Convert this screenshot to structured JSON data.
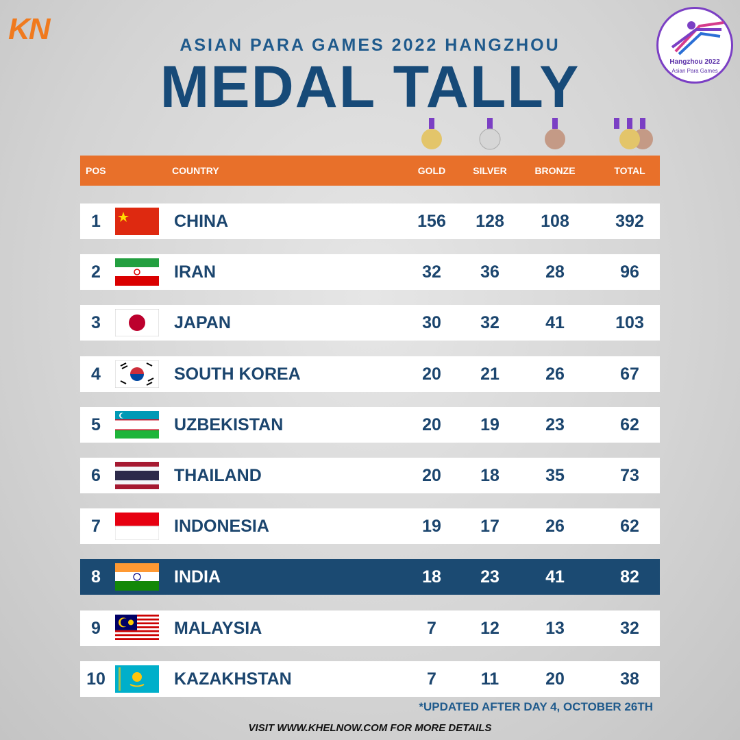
{
  "logo": "KN",
  "header": {
    "subtitle": "ASIAN PARA GAMES 2022 HANGZHOU",
    "title": "MEDAL TALLY"
  },
  "badge": {
    "title": "Hangzhou 2022",
    "subtitle": "Asian Para Games"
  },
  "table": {
    "columns": [
      "POS",
      "COUNTRY",
      "GOLD",
      "SILVER",
      "BRONZE",
      "TOTAL"
    ],
    "rows": [
      [
        1,
        "CHINA",
        156,
        128,
        108,
        392
      ],
      [
        2,
        "IRAN",
        32,
        36,
        28,
        96
      ],
      [
        3,
        "JAPAN",
        30,
        32,
        41,
        103
      ],
      [
        4,
        "SOUTH KOREA",
        20,
        21,
        26,
        67
      ],
      [
        5,
        "UZBEKISTAN",
        20,
        19,
        23,
        62
      ],
      [
        6,
        "THAILAND",
        20,
        18,
        35,
        73
      ],
      [
        7,
        "INDONESIA",
        19,
        17,
        26,
        62
      ],
      [
        8,
        "INDIA",
        18,
        23,
        41,
        82
      ],
      [
        9,
        "MALAYSIA",
        7,
        12,
        13,
        32
      ],
      [
        10,
        "KAZAKHSTAN",
        7,
        11,
        20,
        38
      ]
    ]
  },
  "note": "*UPDATED AFTER DAY 4, OCTOBER 26TH",
  "footer": "VISIT WWW.KHELNOW.COM FOR MORE DETAILS"
}
